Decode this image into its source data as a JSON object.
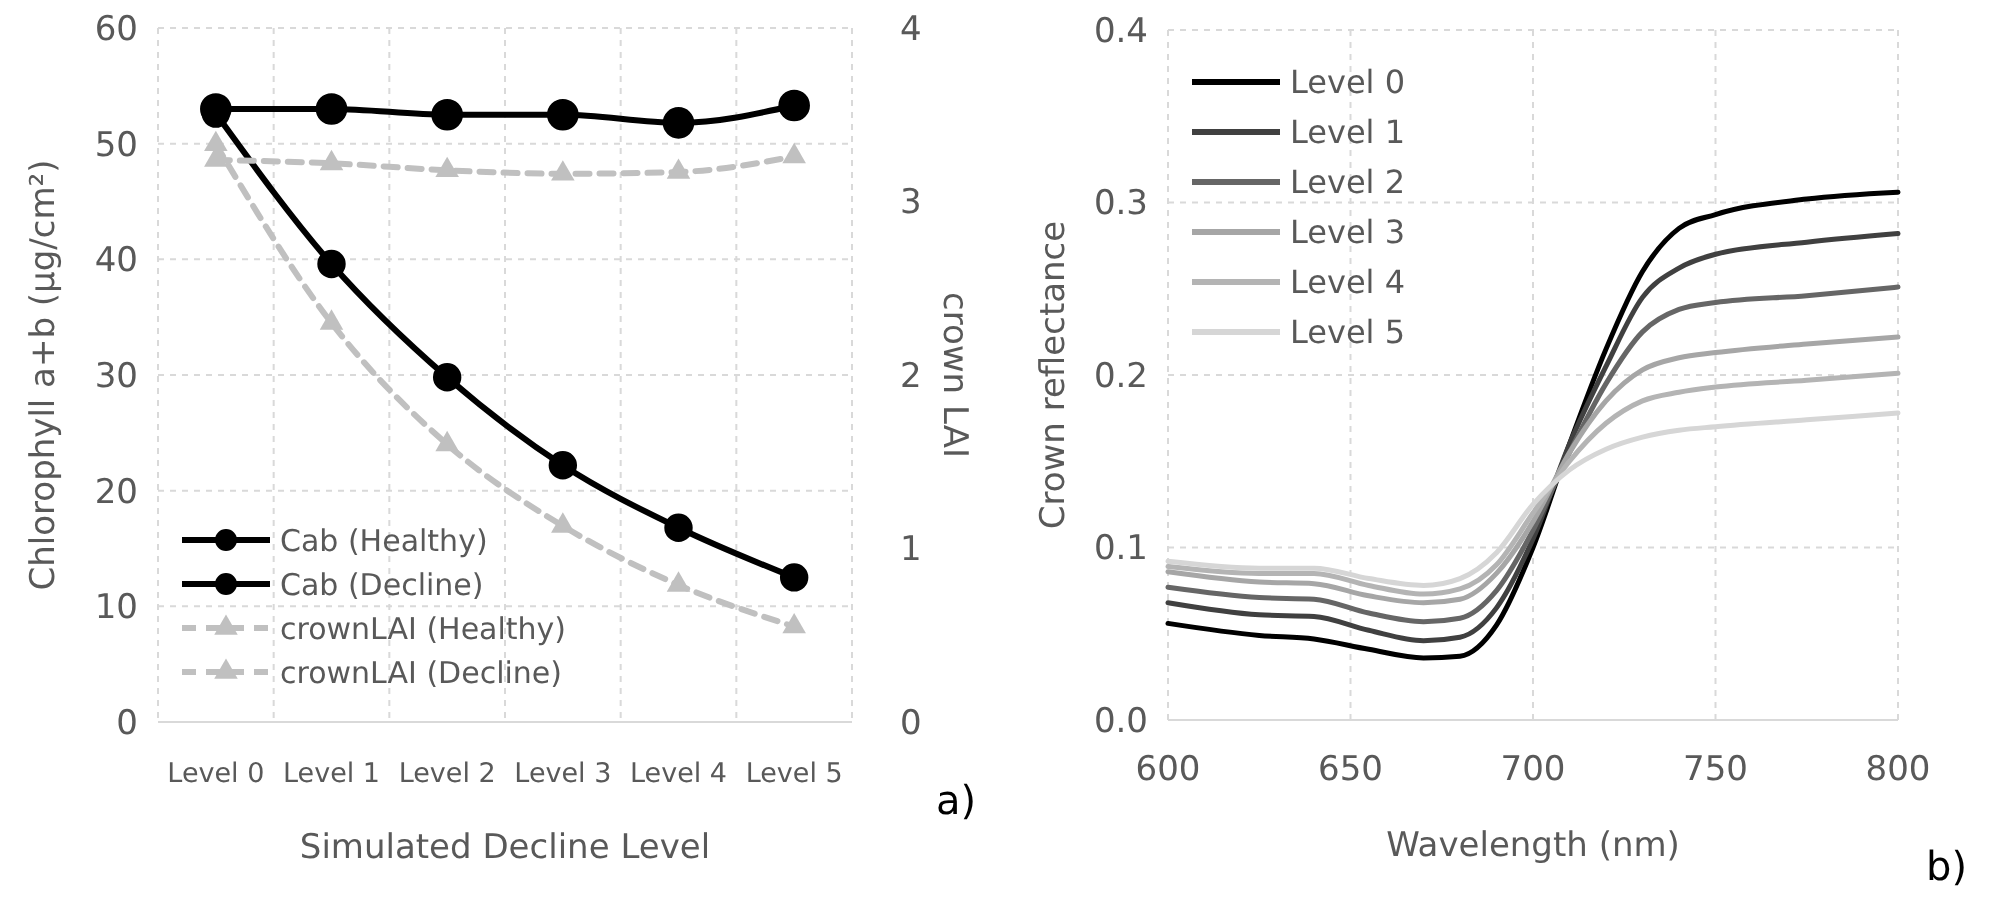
{
  "chart_data": [
    {
      "type": "line",
      "xlabel": "Simulated Decline Level",
      "ylabel": "Chlorophyll a+b (µg/cm²)",
      "y2label": "crown LAI",
      "categories": [
        "Level 0",
        "Level 1",
        "Level 2",
        "Level 3",
        "Level 4",
        "Level 5"
      ],
      "ylim": [
        0,
        60
      ],
      "yticks": [
        0,
        10,
        20,
        30,
        40,
        50,
        60
      ],
      "y2lim": [
        0,
        4
      ],
      "y2ticks": [
        0,
        1,
        2,
        3,
        4
      ],
      "grid": true,
      "legend": "bottom left",
      "annotations": [
        "a)"
      ],
      "series": [
        {
          "name": "Cab (Healthy)",
          "color": "#000000",
          "marker": "circle",
          "line_style": "solid",
          "values": [
            53,
            53,
            52.5,
            52.5,
            51.8,
            53.3
          ]
        },
        {
          "name": "Cab (Decline)",
          "color": "#000000",
          "marker": "circle",
          "line_style": "solid",
          "values": [
            52.6,
            39.6,
            29.8,
            22.2,
            16.8,
            12.5
          ]
        },
        {
          "name": "crownLAI (Healthy)",
          "color": "#c0c0c0",
          "marker": "triangle",
          "line_style": "dashed",
          "axis": "y2",
          "values": [
            3.24,
            3.22,
            3.18,
            3.16,
            3.17,
            3.26
          ]
        },
        {
          "name": "crownLAI (Decline)",
          "color": "#c0c0c0",
          "marker": "triangle",
          "line_style": "dashed",
          "axis": "y2",
          "values": [
            3.33,
            2.3,
            1.6,
            1.13,
            0.79,
            0.55
          ]
        }
      ]
    },
    {
      "type": "line",
      "xlabel": "Wavelength (nm)",
      "ylabel": "Crown reflectance",
      "x": [
        600,
        625,
        640,
        655,
        670,
        680,
        690,
        700,
        710,
        720,
        730,
        740,
        750,
        775,
        800
      ],
      "xlim": [
        600,
        800
      ],
      "xticks": [
        600,
        650,
        700,
        750,
        800
      ],
      "ylim": [
        0,
        0.4
      ],
      "yticks": [
        {
          "value": 0,
          "label": "0.0"
        },
        {
          "value": 0.1,
          "label": "0.1"
        },
        {
          "value": 0.2,
          "label": "0.2"
        },
        {
          "value": 0.3,
          "label": "0.3"
        },
        {
          "value": 0.4,
          "label": "0.4"
        }
      ],
      "grid": true,
      "legend": "top left",
      "annotations": [
        "b)"
      ],
      "series": [
        {
          "name": "Level 0",
          "color": "#000000",
          "values": [
            0.056,
            0.049,
            0.047,
            0.041,
            0.036,
            0.037,
            0.055,
            0.1,
            0.16,
            0.215,
            0.26,
            0.285,
            0.293,
            0.302,
            0.306
          ]
        },
        {
          "name": "Level 1",
          "color": "#404040",
          "values": [
            0.068,
            0.061,
            0.06,
            0.052,
            0.046,
            0.048,
            0.065,
            0.105,
            0.16,
            0.205,
            0.245,
            0.262,
            0.27,
            0.277,
            0.282
          ]
        },
        {
          "name": "Level 2",
          "color": "#666666",
          "values": [
            0.077,
            0.071,
            0.07,
            0.062,
            0.057,
            0.059,
            0.075,
            0.11,
            0.155,
            0.195,
            0.225,
            0.238,
            0.242,
            0.246,
            0.251
          ]
        },
        {
          "name": "Level 3",
          "color": "#a6a6a6",
          "values": [
            0.086,
            0.08,
            0.079,
            0.072,
            0.068,
            0.07,
            0.085,
            0.115,
            0.155,
            0.185,
            0.203,
            0.21,
            0.213,
            0.218,
            0.222
          ]
        },
        {
          "name": "Level 4",
          "color": "#b4b4b4",
          "values": [
            0.089,
            0.085,
            0.085,
            0.078,
            0.073,
            0.076,
            0.09,
            0.12,
            0.15,
            0.172,
            0.185,
            0.19,
            0.193,
            0.197,
            0.201
          ]
        },
        {
          "name": "Level 5",
          "color": "#d6d6d6",
          "values": [
            0.092,
            0.088,
            0.088,
            0.082,
            0.078,
            0.082,
            0.097,
            0.125,
            0.145,
            0.157,
            0.164,
            0.168,
            0.17,
            0.174,
            0.178
          ]
        }
      ]
    }
  ]
}
